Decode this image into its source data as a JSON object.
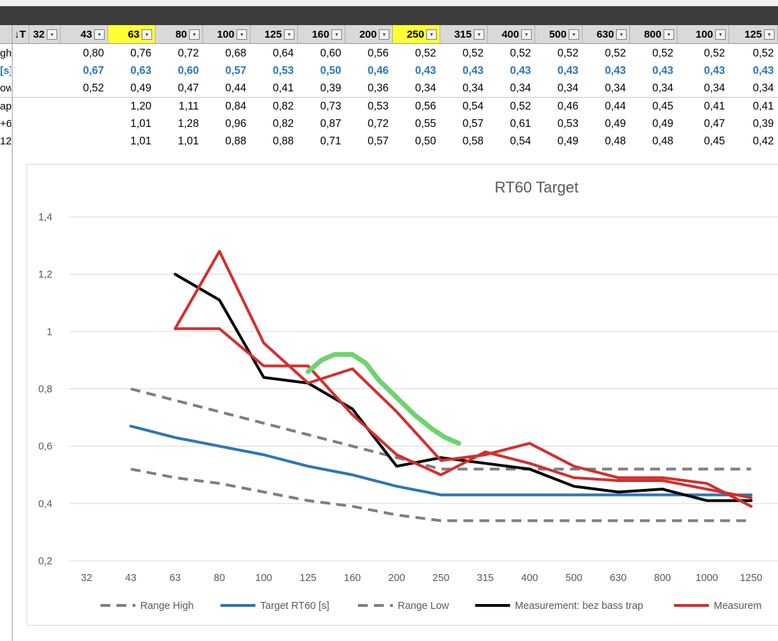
{
  "sheet": {
    "columns": [
      {
        "label": "32",
        "x": 42,
        "w": 45,
        "yellow": false
      },
      {
        "label": "43",
        "x": 87,
        "w": 68,
        "yellow": false
      },
      {
        "label": "63",
        "x": 155,
        "w": 68,
        "yellow": true
      },
      {
        "label": "80",
        "x": 223,
        "w": 68,
        "yellow": false
      },
      {
        "label": "100",
        "x": 291,
        "w": 68,
        "yellow": false
      },
      {
        "label": "125",
        "x": 359,
        "w": 68,
        "yellow": false
      },
      {
        "label": "160",
        "x": 427,
        "w": 68,
        "yellow": false
      },
      {
        "label": "200",
        "x": 495,
        "w": 68,
        "yellow": false
      },
      {
        "label": "250",
        "x": 563,
        "w": 68,
        "yellow": true
      },
      {
        "label": "315",
        "x": 631,
        "w": 68,
        "yellow": false
      },
      {
        "label": "400",
        "x": 699,
        "w": 68,
        "yellow": false
      },
      {
        "label": "500",
        "x": 767,
        "w": 68,
        "yellow": false
      },
      {
        "label": "630",
        "x": 835,
        "w": 68,
        "yellow": false
      },
      {
        "label": "800",
        "x": 903,
        "w": 68,
        "yellow": false
      },
      {
        "label": "100",
        "x": 971,
        "w": 74,
        "yellow": false
      },
      {
        "label": "125",
        "x": 1045,
        "w": 70,
        "yellow": false
      }
    ],
    "first_header_label": "↓T",
    "rows": [
      {
        "label": "gh",
        "blue": false,
        "sep": false,
        "values": [
          "0,80",
          "0,76",
          "0,72",
          "0,68",
          "0,64",
          "0,60",
          "0,56",
          "0,52",
          "0,52",
          "0,52",
          "0,52",
          "0,52",
          "0,52",
          "0,52",
          "0,52"
        ]
      },
      {
        "label": "[s]",
        "blue": true,
        "sep": false,
        "values": [
          "0,67",
          "0,63",
          "0,60",
          "0,57",
          "0,53",
          "0,50",
          "0,46",
          "0,43",
          "0,43",
          "0,43",
          "0,43",
          "0,43",
          "0,43",
          "0,43",
          "0,43"
        ]
      },
      {
        "label": "ow",
        "blue": false,
        "sep": true,
        "values": [
          "0,52",
          "0,49",
          "0,47",
          "0,44",
          "0,41",
          "0,39",
          "0,36",
          "0,34",
          "0,34",
          "0,34",
          "0,34",
          "0,34",
          "0,34",
          "0,34",
          "0,34"
        ]
      },
      {
        "label": "ap",
        "blue": false,
        "sep": false,
        "values": [
          "",
          "1,20",
          "1,11",
          "0,84",
          "0,82",
          "0,73",
          "0,53",
          "0,56",
          "0,54",
          "0,52",
          "0,46",
          "0,44",
          "0,45",
          "0,41",
          "0,41"
        ]
      },
      {
        "label": "+6",
        "blue": false,
        "sep": false,
        "values": [
          "",
          "1,01",
          "1,28",
          "0,96",
          "0,82",
          "0,87",
          "0,72",
          "0,55",
          "0,57",
          "0,61",
          "0,53",
          "0,49",
          "0,49",
          "0,47",
          "0,39"
        ]
      },
      {
        "label": "12",
        "blue": false,
        "sep": false,
        "values": [
          "",
          "1,01",
          "1,01",
          "0,88",
          "0,88",
          "0,71",
          "0,57",
          "0,50",
          "0,58",
          "0,54",
          "0,49",
          "0,48",
          "0,48",
          "0,45",
          "0,42"
        ]
      }
    ]
  },
  "chart_data": {
    "type": "line",
    "title": "RT60 Target",
    "categories": [
      "32",
      "43",
      "63",
      "80",
      "100",
      "125",
      "160",
      "200",
      "250",
      "315",
      "400",
      "500",
      "630",
      "800",
      "1000",
      "1250"
    ],
    "ylim": [
      0.2,
      1.4
    ],
    "yticks": [
      "0,2",
      "0,4",
      "0,6",
      "0,8",
      "1",
      "1,2",
      "1,4"
    ],
    "grid": true,
    "legend_position": "bottom",
    "series": [
      {
        "name": "Range High",
        "color": "#7f7f7f",
        "dash": true,
        "values": [
          null,
          0.8,
          0.76,
          0.72,
          0.68,
          0.64,
          0.6,
          0.56,
          0.52,
          0.52,
          0.52,
          0.52,
          0.52,
          0.52,
          0.52,
          0.52
        ]
      },
      {
        "name": "Target RT60 [s]",
        "color": "#2e75b6",
        "dash": false,
        "values": [
          null,
          0.67,
          0.63,
          0.6,
          0.57,
          0.53,
          0.5,
          0.46,
          0.43,
          0.43,
          0.43,
          0.43,
          0.43,
          0.43,
          0.43,
          0.43
        ]
      },
      {
        "name": "Range Low",
        "color": "#7f7f7f",
        "dash": true,
        "values": [
          null,
          0.52,
          0.49,
          0.47,
          0.44,
          0.41,
          0.39,
          0.36,
          0.34,
          0.34,
          0.34,
          0.34,
          0.34,
          0.34,
          0.34,
          0.34
        ]
      },
      {
        "name": "Measurement: bez bass trap",
        "color": "#000000",
        "dash": false,
        "values": [
          null,
          null,
          1.2,
          1.11,
          0.84,
          0.82,
          0.73,
          0.53,
          0.56,
          0.54,
          0.52,
          0.46,
          0.44,
          0.45,
          0.41,
          0.41
        ]
      },
      {
        "name": "Measurem",
        "color": "#d32f2f",
        "dash": false,
        "values": [
          null,
          null,
          1.01,
          1.28,
          0.96,
          0.82,
          0.87,
          0.72,
          0.55,
          0.57,
          0.61,
          0.53,
          0.49,
          0.49,
          0.47,
          0.39
        ]
      },
      {
        "name": "",
        "color": "#d32f2f",
        "dash": false,
        "values": [
          null,
          null,
          1.01,
          1.01,
          0.88,
          0.88,
          0.71,
          0.57,
          0.5,
          0.58,
          0.54,
          0.49,
          0.48,
          0.48,
          0.45,
          0.42
        ]
      }
    ],
    "annotation": {
      "type": "freehand-stroke",
      "color": "#6fd36f",
      "points": [
        [
          5,
          0.86
        ],
        [
          5.3,
          0.9
        ],
        [
          5.6,
          0.92
        ],
        [
          6.0,
          0.92
        ],
        [
          6.3,
          0.89
        ],
        [
          6.6,
          0.83
        ],
        [
          7.0,
          0.77
        ],
        [
          7.4,
          0.71
        ],
        [
          7.8,
          0.66
        ],
        [
          8.1,
          0.63
        ],
        [
          8.4,
          0.61
        ]
      ]
    }
  }
}
